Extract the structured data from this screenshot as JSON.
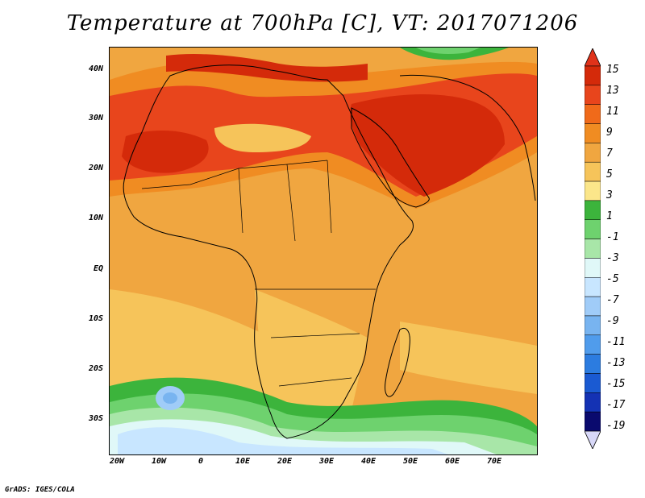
{
  "title": "Temperature at 700hPa [C], VT: 2017071206",
  "credit": "GrADS: IGES/COLA",
  "map": {
    "lat_labels": [
      "40N",
      "30N",
      "20N",
      "10N",
      "EQ",
      "10S",
      "20S",
      "30S"
    ],
    "lon_labels": [
      "20W",
      "10W",
      "0",
      "10E",
      "20E",
      "30E",
      "40E",
      "50E",
      "60E",
      "70E"
    ],
    "lon_range": [
      -22,
      80
    ],
    "lat_range": [
      -37,
      45
    ]
  },
  "colorbar": {
    "labels": [
      "15",
      "13",
      "11",
      "9",
      "7",
      "5",
      "3",
      "1",
      "-1",
      "-3",
      "-5",
      "-7",
      "-9",
      "-11",
      "-13",
      "-15",
      "-17",
      "-19"
    ],
    "colors": [
      "#d42a0a",
      "#e8451c",
      "#f06a1a",
      "#f08c22",
      "#f0a640",
      "#f6c45a",
      "#fbe68a",
      "#3cb43c",
      "#6ed26e",
      "#a8e6a8",
      "#e0f8f8",
      "#c8e6ff",
      "#a0ccf8",
      "#78b4f0",
      "#509cec",
      "#2c7ce0",
      "#1a5ad2",
      "#1432b4",
      "#0a0a6e"
    ],
    "top_arrow_color": "#e0321a",
    "bottom_arrow_color": "#d8d8f8"
  }
}
